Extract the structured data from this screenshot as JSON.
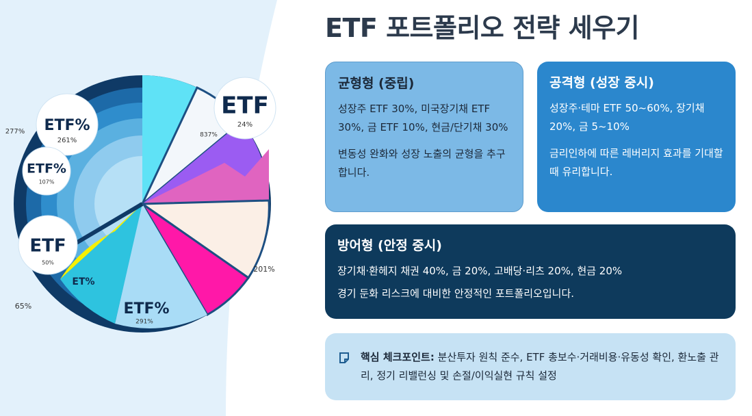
{
  "title": "ETF 포트폴리오 전략 세우기",
  "illustration": {
    "labels": [
      "ETF%",
      "261%",
      "ETF%",
      "107%",
      "ETF",
      "50%",
      "ETF",
      "24%",
      "837%",
      "277%",
      "201%",
      "ET%",
      "ETF%",
      "291%",
      "65%"
    ]
  },
  "cards": [
    {
      "title": "균형형 (중립)",
      "paragraphs": [
        "성장주 ETF 30%, 미국장기채 ETF 30%, 금 ETF 10%, 현금/단기채 30%",
        "변동성 완화와 성장 노출의 균형을 추구합니다."
      ]
    },
    {
      "title": "공격형 (성장 중시)",
      "paragraphs": [
        "성장주·테마 ETF 50~60%, 장기채 20%, 금 5~10%",
        "금리인하에 따른 레버리지 효과를 기대할 때 유리합니다."
      ]
    },
    {
      "title": "방어형 (안정 중시)",
      "paragraphs": [
        "장기채·환헤지 채권 40%, 금 20%, 고배당·리츠 20%, 현금 20%",
        "경기 둔화 리스크에 대비한 안정적인 포트폴리오입니다."
      ]
    }
  ],
  "checkpoint": {
    "label": "핵심 체크포인트:",
    "text": "분산투자 원칙 준수, ETF 총보수·거래비용·유동성 확인, 환노출 관리, 정기 리밸런싱 및 손절/이익실현 규칙 설정"
  }
}
